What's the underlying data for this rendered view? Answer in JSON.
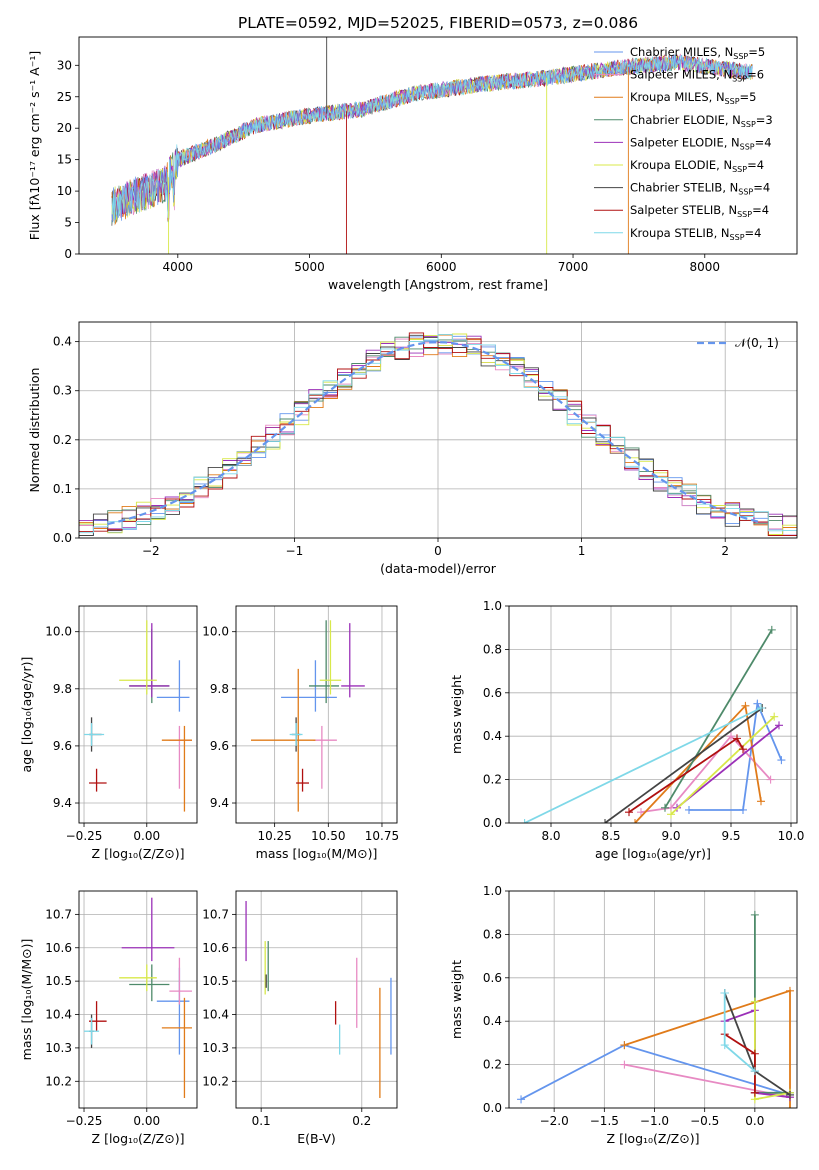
{
  "figure": {
    "title": "PLATE=0592, MJD=52025, FIBERID=0573, z=0.086"
  },
  "legend_entries": [
    {
      "label": "Chabrier MILES, N",
      "sub": "SSP",
      "suffix": "=5",
      "color": "#6495ED"
    },
    {
      "label": "Salpeter MILES, N",
      "sub": "SSP",
      "suffix": "=6",
      "color": "#E78AC3"
    },
    {
      "label": "Kroupa MILES, N",
      "sub": "SSP",
      "suffix": "=5",
      "color": "#E07B1A"
    },
    {
      "label": "Chabrier ELODIE, N",
      "sub": "SSP",
      "suffix": "=3",
      "color": "#4E8A6A"
    },
    {
      "label": "Salpeter ELODIE, N",
      "sub": "SSP",
      "suffix": "=4",
      "color": "#9B30B8"
    },
    {
      "label": "Kroupa ELODIE, N",
      "sub": "SSP",
      "suffix": "=4",
      "color": "#D8E84A"
    },
    {
      "label": "Chabrier STELIB, N",
      "sub": "SSP",
      "suffix": "=4",
      "color": "#444444"
    },
    {
      "label": "Salpeter STELIB, N",
      "sub": "SSP",
      "suffix": "=4",
      "color": "#B01010"
    },
    {
      "label": "Kroupa STELIB, N",
      "sub": "SSP",
      "suffix": "=4",
      "color": "#7FD8E8"
    }
  ],
  "hist_legend": {
    "label": "𝒩(0, 1)"
  },
  "chart_data": [
    {
      "id": "spectrum",
      "type": "line",
      "xlabel": "wavelength [Angstrom, rest frame]",
      "ylabel": "Flux [fλ10⁻¹⁷ erg cm⁻² s⁻¹ A⁻¹]",
      "xlim": [
        3250,
        8700
      ],
      "ylim": [
        0,
        34.5
      ],
      "xticks": [
        4000,
        5000,
        6000,
        7000,
        8000
      ],
      "yticks": [
        0,
        5,
        10,
        15,
        20,
        25,
        30
      ],
      "grid": false,
      "continuum": [
        [
          3500,
          7.5
        ],
        [
          3700,
          9.5
        ],
        [
          3900,
          11
        ],
        [
          4000,
          15
        ],
        [
          4300,
          17.5
        ],
        [
          4600,
          20.5
        ],
        [
          5000,
          22
        ],
        [
          5400,
          23
        ],
        [
          5800,
          25.5
        ],
        [
          6300,
          27
        ],
        [
          6800,
          28
        ],
        [
          7300,
          29.5
        ],
        [
          7800,
          30.5
        ],
        [
          8300,
          29
        ]
      ],
      "features": [
        {
          "x": 5130,
          "y": 37
        },
        {
          "x": 5280,
          "y": 0
        },
        {
          "x": 6800,
          "y": 0
        },
        {
          "x": 7420,
          "y": 0
        },
        {
          "x": 3930,
          "y": 0
        }
      ]
    },
    {
      "id": "residual-hist",
      "type": "histogram",
      "xlabel": "(data-model)/error",
      "ylabel": "Normed distribution",
      "xlim": [
        -2.5,
        2.5
      ],
      "ylim": [
        0,
        0.44
      ],
      "xticks": [
        -2,
        -1,
        0,
        1,
        2
      ],
      "yticks": [
        0.0,
        0.1,
        0.2,
        0.3,
        0.4
      ],
      "grid": true,
      "bin_width": 0.1,
      "reference": "normal(0,1)"
    },
    {
      "id": "age-vs-Z",
      "type": "errorbar",
      "xlabel": "Z [log₁₀(Z/Z⊙)]",
      "ylabel": "age  [log₁₀(age/yr)]",
      "xlim": [
        -0.27,
        0.2
      ],
      "ylim": [
        9.33,
        10.09
      ],
      "xticks": [
        -0.25,
        0.0
      ],
      "yticks": [
        9.4,
        9.6,
        9.8,
        10.0
      ],
      "grid": true,
      "points": [
        {
          "series": 0,
          "x": 0.13,
          "y": 9.77,
          "xerr": [
            0.09,
            0.04
          ],
          "yerr": [
            0.05,
            0.13
          ]
        },
        {
          "series": 1,
          "x": 0.13,
          "y": 9.62,
          "xerr": [
            0.04,
            0.05
          ],
          "yerr": [
            0.17,
            0.05
          ]
        },
        {
          "series": 2,
          "x": 0.15,
          "y": 9.62,
          "xerr": [
            0.09,
            0.03
          ],
          "yerr": [
            0.25,
            0.05
          ]
        },
        {
          "series": 3,
          "x": 0.02,
          "y": 9.81,
          "xerr": [
            0.09,
            0.07
          ],
          "yerr": [
            0.06,
            0.2
          ]
        },
        {
          "series": 4,
          "x": 0.02,
          "y": 9.81,
          "xerr": [
            0.09,
            0.07
          ],
          "yerr": [
            0.04,
            0.22
          ]
        },
        {
          "series": 5,
          "x": 0.0,
          "y": 9.83,
          "xerr": [
            0.11,
            0.04
          ],
          "yerr": [
            0.05,
            0.21
          ]
        },
        {
          "series": 6,
          "x": -0.22,
          "y": 9.64,
          "xerr": [
            0.01,
            0.04
          ],
          "yerr": [
            0.06,
            0.06
          ]
        },
        {
          "series": 7,
          "x": -0.2,
          "y": 9.47,
          "xerr": [
            0.03,
            0.04
          ],
          "yerr": [
            0.03,
            0.05
          ]
        },
        {
          "series": 8,
          "x": -0.22,
          "y": 9.64,
          "xerr": [
            0.03,
            0.05
          ],
          "yerr": [
            0.04,
            0.04
          ]
        }
      ]
    },
    {
      "id": "age-vs-mass",
      "type": "errorbar",
      "xlabel": "mass [log₁₀(M/M⊙)]",
      "ylabel": "",
      "xlim": [
        10.07,
        10.82
      ],
      "ylim": [
        9.33,
        10.09
      ],
      "xticks": [
        10.25,
        10.5,
        10.75
      ],
      "yticks": [
        9.4,
        9.6,
        9.8,
        10.0
      ],
      "grid": true,
      "points": [
        {
          "series": 0,
          "x": 10.44,
          "y": 9.77,
          "xerr": [
            0.16,
            0.1
          ],
          "yerr": [
            0.05,
            0.13
          ]
        },
        {
          "series": 1,
          "x": 10.47,
          "y": 9.62,
          "xerr": [
            0.04,
            0.07
          ],
          "yerr": [
            0.17,
            0.05
          ]
        },
        {
          "series": 2,
          "x": 10.36,
          "y": 9.62,
          "xerr": [
            0.22,
            0.08
          ],
          "yerr": [
            0.25,
            0.25
          ]
        },
        {
          "series": 3,
          "x": 10.49,
          "y": 9.81,
          "xerr": [
            0.08,
            0.06
          ],
          "yerr": [
            0.06,
            0.23
          ]
        },
        {
          "series": 4,
          "x": 10.6,
          "y": 9.81,
          "xerr": [
            0.04,
            0.07
          ],
          "yerr": [
            0.04,
            0.22
          ]
        },
        {
          "series": 5,
          "x": 10.51,
          "y": 9.83,
          "xerr": [
            0.05,
            0.05
          ],
          "yerr": [
            0.05,
            0.21
          ]
        },
        {
          "series": 6,
          "x": 10.35,
          "y": 9.64,
          "xerr": [
            0.02,
            0.02
          ],
          "yerr": [
            0.06,
            0.06
          ]
        },
        {
          "series": 7,
          "x": 10.38,
          "y": 9.47,
          "xerr": [
            0.03,
            0.03
          ],
          "yerr": [
            0.03,
            0.05
          ]
        },
        {
          "series": 8,
          "x": 10.35,
          "y": 9.64,
          "xerr": [
            0.03,
            0.03
          ],
          "yerr": [
            0.04,
            0.04
          ]
        }
      ]
    },
    {
      "id": "weight-vs-age",
      "type": "line",
      "xlabel": "age  [log₁₀(age/yr)]",
      "ylabel": "mass weight",
      "xlim": [
        7.65,
        10.05
      ],
      "ylim": [
        0,
        1.0
      ],
      "xticks": [
        8.0,
        8.5,
        9.0,
        9.5,
        10.0
      ],
      "yticks": [
        0.0,
        0.2,
        0.4,
        0.6,
        0.8,
        1.0
      ],
      "grid": true,
      "series": [
        {
          "series": 0,
          "points": [
            [
              9.15,
              0.06
            ],
            [
              9.6,
              0.06
            ],
            [
              9.72,
              0.55
            ],
            [
              9.92,
              0.29
            ]
          ]
        },
        {
          "series": 1,
          "points": [
            [
              8.75,
              0.05
            ],
            [
              9.0,
              0.07
            ],
            [
              9.5,
              0.4
            ],
            [
              9.83,
              0.2
            ]
          ]
        },
        {
          "series": 2,
          "points": [
            [
              8.7,
              0.0
            ],
            [
              9.62,
              0.54
            ],
            [
              9.75,
              0.1
            ]
          ]
        },
        {
          "series": 3,
          "points": [
            [
              8.95,
              0.07
            ],
            [
              9.84,
              0.89
            ]
          ]
        },
        {
          "series": 4,
          "points": [
            [
              9.05,
              0.07
            ],
            [
              9.9,
              0.45
            ]
          ]
        },
        {
          "series": 5,
          "points": [
            [
              9.0,
              0.04
            ],
            [
              9.86,
              0.49
            ]
          ]
        },
        {
          "series": 6,
          "points": [
            [
              8.45,
              0.0
            ],
            [
              9.76,
              0.53
            ]
          ]
        },
        {
          "series": 7,
          "points": [
            [
              8.65,
              0.05
            ],
            [
              9.55,
              0.39
            ],
            [
              9.6,
              0.34
            ]
          ]
        },
        {
          "series": 8,
          "points": [
            [
              7.78,
              0.0
            ],
            [
              9.75,
              0.53
            ]
          ]
        }
      ]
    },
    {
      "id": "mass-vs-Z",
      "type": "errorbar",
      "xlabel": "Z [log₁₀(Z/Z⊙)]",
      "ylabel": "mass [log₁₀(M/M⊙)]",
      "xlim": [
        -0.27,
        0.2
      ],
      "ylim": [
        10.12,
        10.77
      ],
      "xticks": [
        -0.25,
        0.0
      ],
      "yticks": [
        10.2,
        10.3,
        10.4,
        10.5,
        10.6,
        10.7
      ],
      "grid": true,
      "points": [
        {
          "series": 0,
          "x": 0.13,
          "y": 10.44,
          "xerr": [
            0.09,
            0.04
          ],
          "yerr": [
            0.16,
            0.1
          ]
        },
        {
          "series": 1,
          "x": 0.13,
          "y": 10.47,
          "xerr": [
            0.04,
            0.05
          ],
          "yerr": [
            0.04,
            0.1
          ]
        },
        {
          "series": 2,
          "x": 0.15,
          "y": 10.36,
          "xerr": [
            0.09,
            0.03
          ],
          "yerr": [
            0.21,
            0.09
          ]
        },
        {
          "series": 3,
          "x": 0.02,
          "y": 10.49,
          "xerr": [
            0.09,
            0.07
          ],
          "yerr": [
            0.05,
            0.06
          ]
        },
        {
          "series": 4,
          "x": 0.02,
          "y": 10.6,
          "xerr": [
            0.12,
            0.09
          ],
          "yerr": [
            0.04,
            0.15
          ]
        },
        {
          "series": 5,
          "x": 0.0,
          "y": 10.51,
          "xerr": [
            0.11,
            0.04
          ],
          "yerr": [
            0.04,
            0.04
          ]
        },
        {
          "series": 6,
          "x": -0.22,
          "y": 10.35,
          "xerr": [
            0.01,
            0.01
          ],
          "yerr": [
            0.05,
            0.05
          ]
        },
        {
          "series": 7,
          "x": -0.2,
          "y": 10.38,
          "xerr": [
            0.03,
            0.04
          ],
          "yerr": [
            0.03,
            0.06
          ]
        },
        {
          "series": 8,
          "x": -0.22,
          "y": 10.35,
          "xerr": [
            0.03,
            0.03
          ],
          "yerr": [
            0.04,
            0.04
          ]
        }
      ]
    },
    {
      "id": "mass-vs-ebv",
      "type": "errorbar",
      "xlabel": "E(B-V)",
      "ylabel": "",
      "xlim": [
        0.075,
        0.235
      ],
      "ylim": [
        10.12,
        10.77
      ],
      "xticks": [
        0.1,
        0.2
      ],
      "yticks": [
        10.2,
        10.3,
        10.4,
        10.5,
        10.6,
        10.7
      ],
      "grid": true,
      "points": [
        {
          "series": 0,
          "x": 0.229,
          "y": 10.44,
          "xerr": [
            0,
            0
          ],
          "yerr": [
            0.16,
            0.07
          ]
        },
        {
          "series": 1,
          "x": 0.195,
          "y": 10.47,
          "xerr": [
            0,
            0
          ],
          "yerr": [
            0.11,
            0.1
          ]
        },
        {
          "series": 2,
          "x": 0.218,
          "y": 10.36,
          "xerr": [
            0,
            0
          ],
          "yerr": [
            0.21,
            0.12
          ]
        },
        {
          "series": 3,
          "x": 0.107,
          "y": 10.52,
          "xerr": [
            0,
            0
          ],
          "yerr": [
            0.05,
            0.1
          ]
        },
        {
          "series": 4,
          "x": 0.085,
          "y": 10.65,
          "xerr": [
            0,
            0
          ],
          "yerr": [
            0.09,
            0.09
          ]
        },
        {
          "series": 5,
          "x": 0.104,
          "y": 10.56,
          "xerr": [
            0,
            0
          ],
          "yerr": [
            0.1,
            0.06
          ]
        },
        {
          "series": 6,
          "x": 0.105,
          "y": 10.5,
          "xerr": [
            0,
            0
          ],
          "yerr": [
            0.02,
            0.02
          ]
        },
        {
          "series": 7,
          "x": 0.174,
          "y": 10.4,
          "xerr": [
            0,
            0
          ],
          "yerr": [
            0.03,
            0.04
          ]
        },
        {
          "series": 8,
          "x": 0.178,
          "y": 10.33,
          "xerr": [
            0,
            0
          ],
          "yerr": [
            0.05,
            0.04
          ]
        }
      ]
    },
    {
      "id": "weight-vs-Z",
      "type": "line",
      "xlabel": "Z [log₁₀(Z/Z⊙)]",
      "ylabel": "mass weight",
      "xlim": [
        -2.45,
        0.42
      ],
      "ylim": [
        0,
        1.0
      ],
      "xticks": [
        -2.0,
        -1.5,
        -1.0,
        -0.5,
        0.0
      ],
      "yticks": [
        0.0,
        0.2,
        0.4,
        0.6,
        0.8,
        1.0
      ],
      "grid": true,
      "series": [
        {
          "series": 0,
          "points": [
            [
              -2.33,
              0.04
            ],
            [
              -1.3,
              0.29
            ],
            [
              0.35,
              0.06
            ]
          ]
        },
        {
          "series": 1,
          "points": [
            [
              -1.3,
              0.2
            ],
            [
              0.35,
              0.05
            ],
            [
              0.0,
              0.07
            ]
          ]
        },
        {
          "series": 2,
          "points": [
            [
              -1.3,
              0.29
            ],
            [
              0.35,
              0.54
            ],
            [
              0.35,
              0.0
            ]
          ]
        },
        {
          "series": 3,
          "points": [
            [
              0.0,
              0.89
            ],
            [
              0.0,
              0.07
            ],
            [
              0.35,
              0.07
            ]
          ]
        },
        {
          "series": 4,
          "points": [
            [
              -0.3,
              0.4
            ],
            [
              0.0,
              0.45
            ],
            [
              0.0,
              0.07
            ],
            [
              0.35,
              0.05
            ]
          ]
        },
        {
          "series": 5,
          "points": [
            [
              0.0,
              0.49
            ],
            [
              0.0,
              0.04
            ],
            [
              0.35,
              0.07
            ]
          ]
        },
        {
          "series": 6,
          "points": [
            [
              -0.3,
              0.53
            ],
            [
              0.0,
              0.17
            ],
            [
              0.35,
              0.06
            ]
          ]
        },
        {
          "series": 7,
          "points": [
            [
              -0.3,
              0.34
            ],
            [
              0.0,
              0.25
            ],
            [
              0.0,
              0.07
            ]
          ]
        },
        {
          "series": 8,
          "points": [
            [
              -0.3,
              0.53
            ],
            [
              -0.3,
              0.29
            ],
            [
              0.0,
              0.17
            ]
          ]
        }
      ]
    }
  ]
}
